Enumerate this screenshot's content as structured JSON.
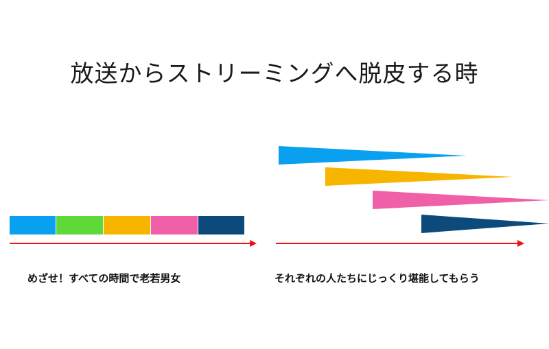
{
  "slide": {
    "title": "放送からストリーミングへ脱皮する時",
    "left_caption": "めざせ！すべての時間で老若男女",
    "right_caption": "それぞれの人たちにじっくり堪能してもらう"
  },
  "colors": {
    "blue": "#0aa0f0",
    "green": "#5fd93a",
    "yellow": "#f8b500",
    "pink": "#f060a8",
    "navy": "#0b4a7a",
    "arrow": "#ee1111"
  },
  "left_segments": [
    "blue",
    "green",
    "yellow",
    "pink",
    "navy"
  ],
  "right_wedges": [
    "blue",
    "yellow",
    "pink",
    "navy"
  ]
}
